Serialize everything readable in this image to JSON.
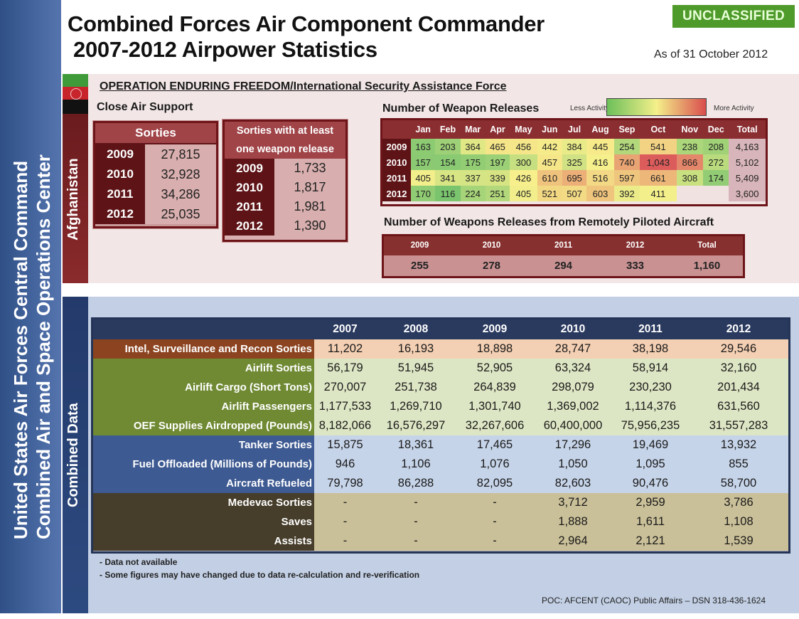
{
  "brand": {
    "line1": "United States Air Forces Central Command",
    "line2": "Combined Air and Space Operations Center"
  },
  "header": {
    "title_line1": "Combined Forces Air Component Commander",
    "title_line2": "2007-2012 Airpower Statistics",
    "classification": "UNCLASSIFIED",
    "as_of": "As of 31 October 2012",
    "classification_color": "#4e9a2a"
  },
  "afghanistan": {
    "section_label": "Afghanistan",
    "operation_title": "OPERATION ENDURING FREEDOM/International  Security Assistance Force",
    "cas_title": "Close Air Support",
    "sorties": {
      "header": "Sorties",
      "rows": [
        {
          "year": "2009",
          "value": "27,815"
        },
        {
          "year": "2010",
          "value": "32,928"
        },
        {
          "year": "2011",
          "value": "34,286"
        },
        {
          "year": "2012",
          "value": "25,035"
        }
      ]
    },
    "weapon_sorties": {
      "header_line1": "Sorties with at least",
      "header_line2": "one weapon release",
      "rows": [
        {
          "year": "2009",
          "value": "1,733"
        },
        {
          "year": "2010",
          "value": "1,817"
        },
        {
          "year": "2011",
          "value": "1,981"
        },
        {
          "year": "2012",
          "value": "1,390"
        }
      ]
    },
    "weapon_releases": {
      "title": "Number of Weapon  Releases",
      "legend_less": "Less Activity",
      "legend_more": "More Activity",
      "columns": [
        "Jan",
        "Feb",
        "Mar",
        "Apr",
        "May",
        "Jun",
        "Jul",
        "Aug",
        "Sep",
        "Oct",
        "Nov",
        "Dec",
        "Total"
      ],
      "rows": [
        {
          "year": "2009",
          "months": [
            "163",
            "203",
            "364",
            "465",
            "456",
            "442",
            "384",
            "445",
            "254",
            "541",
            "238",
            "208"
          ],
          "total": "4,163"
        },
        {
          "year": "2010",
          "months": [
            "157",
            "154",
            "175",
            "197",
            "300",
            "457",
            "325",
            "416",
            "740",
            "1,043",
            "866",
            "272"
          ],
          "total": "5,102"
        },
        {
          "year": "2011",
          "months": [
            "405",
            "341",
            "337",
            "339",
            "426",
            "610",
            "695",
            "516",
            "597",
            "661",
            "308",
            "174"
          ],
          "total": "5,409"
        },
        {
          "year": "2012",
          "months": [
            "170",
            "116",
            "224",
            "251",
            "405",
            "521",
            "507",
            "603",
            "392",
            "411",
            "",
            ""
          ],
          "total": "3,600"
        }
      ]
    },
    "rpa": {
      "title": "Number of Weapons  Releases from  Remotely Piloted Aircraft",
      "headers": [
        "2009",
        "2010",
        "2011",
        "2012",
        "Total"
      ],
      "values": [
        "255",
        "278",
        "294",
        "333",
        "1,160"
      ]
    }
  },
  "combined": {
    "section_label": "Combined Data",
    "years": [
      "2007",
      "2008",
      "2009",
      "2010",
      "2011",
      "2012"
    ],
    "rows": [
      {
        "group": "isr",
        "label": "Intel, Surveillance and Recon Sorties",
        "values": [
          "11,202",
          "16,193",
          "18,898",
          "28,747",
          "38,198",
          "29,546"
        ]
      },
      {
        "group": "air",
        "label": "Airlift Sorties",
        "values": [
          "56,179",
          "51,945",
          "52,905",
          "63,324",
          "58,914",
          "32,160"
        ]
      },
      {
        "group": "air",
        "label": "Airlift Cargo (Short Tons)",
        "values": [
          "270,007",
          "251,738",
          "264,839",
          "298,079",
          "230,230",
          "201,434"
        ]
      },
      {
        "group": "air",
        "label": "Airlift Passengers",
        "values": [
          "1,177,533",
          "1,269,710",
          "1,301,740",
          "1,369,002",
          "1,114,376",
          "631,560"
        ]
      },
      {
        "group": "air",
        "label": "OEF Supplies Airdropped (Pounds)",
        "values": [
          "8,182,066",
          "16,576,297",
          "32,267,606",
          "60,400,000",
          "75,956,235",
          "31,557,283"
        ]
      },
      {
        "group": "tank",
        "label": "Tanker Sorties",
        "values": [
          "15,875",
          "18,361",
          "17,465",
          "17,296",
          "19,469",
          "13,932"
        ]
      },
      {
        "group": "tank",
        "label": "Fuel Offloaded (Millions of Pounds)",
        "values": [
          "946",
          "1,106",
          "1,076",
          "1,050",
          "1,095",
          "855"
        ]
      },
      {
        "group": "tank",
        "label": "Aircraft Refueled",
        "values": [
          "79,798",
          "86,288",
          "82,095",
          "82,603",
          "90,476",
          "58,700"
        ]
      },
      {
        "group": "med",
        "label": "Medevac Sorties",
        "values": [
          "-",
          "-",
          "-",
          "3,712",
          "2,959",
          "3,786"
        ]
      },
      {
        "group": "med",
        "label": "Saves",
        "values": [
          "-",
          "-",
          "-",
          "1,888",
          "1,611",
          "1,108"
        ]
      },
      {
        "group": "med",
        "label": "Assists",
        "values": [
          "-",
          "-",
          "-",
          "2,964",
          "2,121",
          "1,539"
        ]
      }
    ],
    "note1": "- Data not available",
    "note2": "- Some figures may have changed due to data re-calculation  and re-verification",
    "poc": "POC:  AFCENT  (CAOC) Public Affairs – DSN  318-436-1624"
  }
}
